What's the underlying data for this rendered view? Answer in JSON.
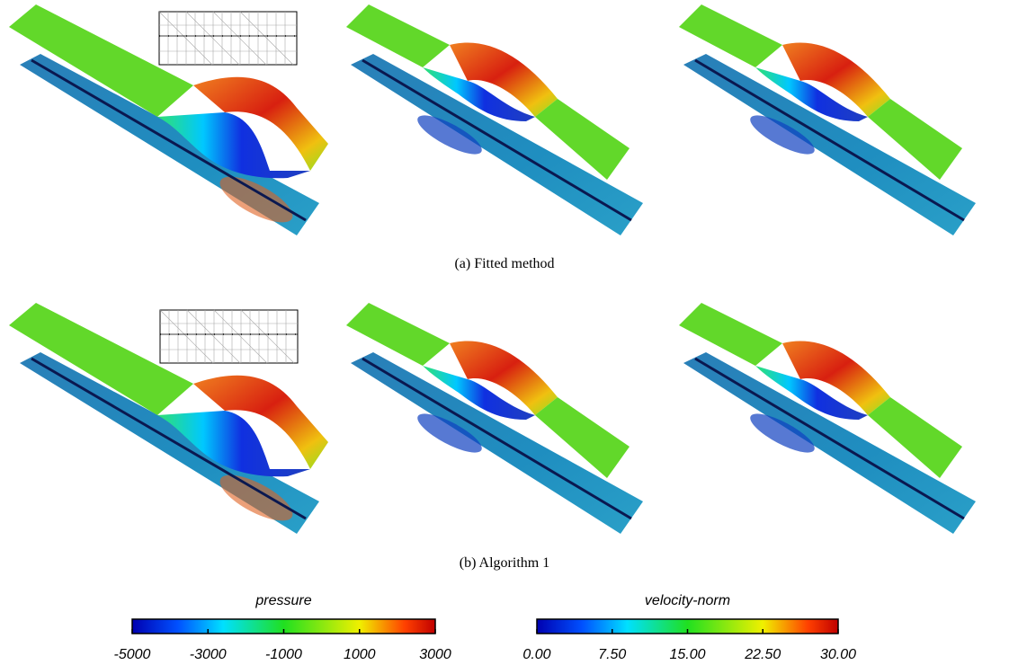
{
  "figure": {
    "captions": [
      "(a) Fitted method",
      "(b) Algorithm 1"
    ],
    "colorbars": [
      {
        "title": "pressure",
        "lim": [
          -5000,
          3000
        ],
        "ticks": [
          -5000,
          -3000,
          -1000,
          1000,
          3000
        ]
      },
      {
        "title": "velocity-norm",
        "lim": [
          0,
          30
        ],
        "ticks": [
          {
            "value": 0,
            "label": "0.00"
          },
          {
            "value": 7.5,
            "label": "7.50"
          },
          {
            "value": 15,
            "label": "15.00"
          },
          {
            "value": 22.5,
            "label": "22.50"
          },
          {
            "value": 30,
            "label": "30.00"
          }
        ]
      }
    ]
  }
}
